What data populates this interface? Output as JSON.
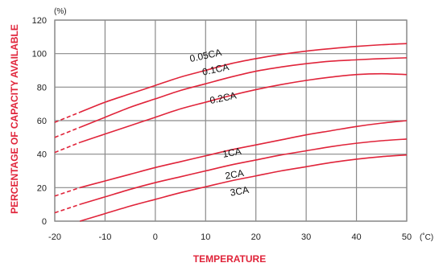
{
  "chart_data": {
    "type": "line",
    "title": "",
    "xlabel": "TEMPERATURE",
    "ylabel": "PERCENTAGE OF CAPACITY AVAILABLE",
    "x_unit": "(˚C)",
    "y_unit": "(%)",
    "xlim": [
      -20,
      50
    ],
    "ylim": [
      0,
      120
    ],
    "x_ticks": [
      -20,
      -10,
      0,
      10,
      20,
      30,
      40,
      50
    ],
    "y_ticks": [
      0,
      20,
      40,
      60,
      80,
      100,
      120
    ],
    "grid": true,
    "line_color": "#e0243a",
    "grid_color": "#8a8a8a",
    "series": [
      {
        "name": "0.05CA",
        "dashed_until": -15,
        "x": [
          -20,
          -15,
          -10,
          -5,
          0,
          5,
          10,
          15,
          20,
          25,
          30,
          35,
          40,
          45,
          50
        ],
        "y": [
          59,
          65,
          71,
          76,
          81,
          86,
          90,
          94,
          97,
          99.5,
          101.5,
          103,
          104.3,
          105.3,
          106
        ]
      },
      {
        "name": "0.1CA",
        "dashed_until": -15,
        "x": [
          -20,
          -15,
          -10,
          -5,
          0,
          5,
          10,
          15,
          20,
          25,
          30,
          35,
          40,
          45,
          50
        ],
        "y": [
          50,
          56,
          62,
          68,
          73,
          78,
          82,
          86,
          89.5,
          92,
          94,
          95.5,
          96.3,
          97,
          97.5
        ]
      },
      {
        "name": "0.2CA",
        "dashed_until": -15,
        "x": [
          -20,
          -15,
          -10,
          -5,
          0,
          5,
          10,
          15,
          20,
          25,
          30,
          35,
          40,
          45,
          50
        ],
        "y": [
          41,
          47,
          52,
          57,
          62,
          67,
          71,
          75,
          78.5,
          81.5,
          84,
          86,
          87.5,
          88,
          87.5
        ]
      },
      {
        "name": "1CA",
        "dashed_until": -15,
        "x": [
          -20,
          -15,
          -10,
          -5,
          0,
          5,
          10,
          15,
          20,
          25,
          30,
          35,
          40,
          45,
          50
        ],
        "y": [
          15,
          20,
          24,
          28,
          32,
          35.5,
          39,
          42.5,
          45.5,
          48.5,
          51.5,
          54,
          56.5,
          58.5,
          60
        ]
      },
      {
        "name": "2CA",
        "dashed_until": -15,
        "x": [
          -20,
          -15,
          -10,
          -5,
          0,
          5,
          10,
          15,
          20,
          25,
          30,
          35,
          40,
          45,
          50
        ],
        "y": [
          5,
          10,
          14.5,
          19,
          23,
          26.5,
          30,
          33.5,
          36.5,
          39.5,
          42,
          44.5,
          46.5,
          48,
          49
        ]
      },
      {
        "name": "3CA",
        "dashed_until": null,
        "x": [
          -15,
          -10,
          -5,
          0,
          5,
          10,
          15,
          20,
          25,
          30,
          35,
          40,
          45,
          50
        ],
        "y": [
          0,
          4.5,
          9,
          13,
          17,
          20.5,
          24,
          27,
          30,
          32.5,
          35,
          37,
          38.5,
          39.5
        ]
      }
    ]
  }
}
